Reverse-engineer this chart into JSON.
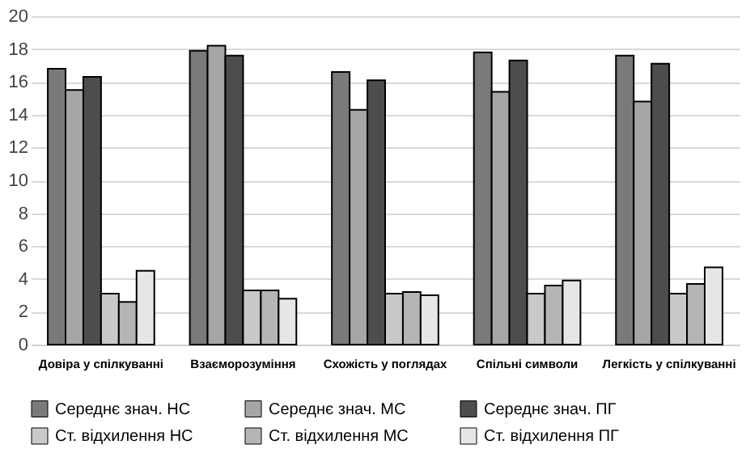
{
  "chart_data": {
    "type": "bar",
    "categories": [
      "Довіра у спілкуванні",
      "Взаєморозуміння",
      "Схожість у поглядах",
      "Спільні символи",
      "Легкість у спілкуванні"
    ],
    "series": [
      {
        "name": "Середнє знач. НС",
        "color": "#7a7a7a",
        "values": [
          16.8,
          17.9,
          16.6,
          17.8,
          17.6
        ]
      },
      {
        "name": "Середнє знач. МС",
        "color": "#a6a6a6",
        "values": [
          15.5,
          18.2,
          14.3,
          15.4,
          14.8
        ]
      },
      {
        "name": "Середнє знач. ПГ",
        "color": "#4d4d4d",
        "values": [
          16.3,
          17.6,
          16.1,
          17.3,
          17.1
        ]
      },
      {
        "name": "Ст. відхилення НС",
        "color": "#c9c9c9",
        "values": [
          3.1,
          3.3,
          3.1,
          3.1,
          3.1
        ]
      },
      {
        "name": "Ст. відхилення МС",
        "color": "#b5b5b5",
        "values": [
          2.6,
          3.3,
          3.2,
          3.6,
          3.7
        ]
      },
      {
        "name": "Ст. відхилення ПГ",
        "color": "#e6e6e6",
        "values": [
          4.5,
          2.8,
          3.0,
          3.9,
          4.7
        ]
      }
    ],
    "ylim": [
      0,
      20
    ],
    "yticks": [
      0,
      2,
      4,
      6,
      8,
      10,
      12,
      14,
      16,
      18,
      20
    ],
    "grid": "y",
    "legend": "bottom"
  }
}
